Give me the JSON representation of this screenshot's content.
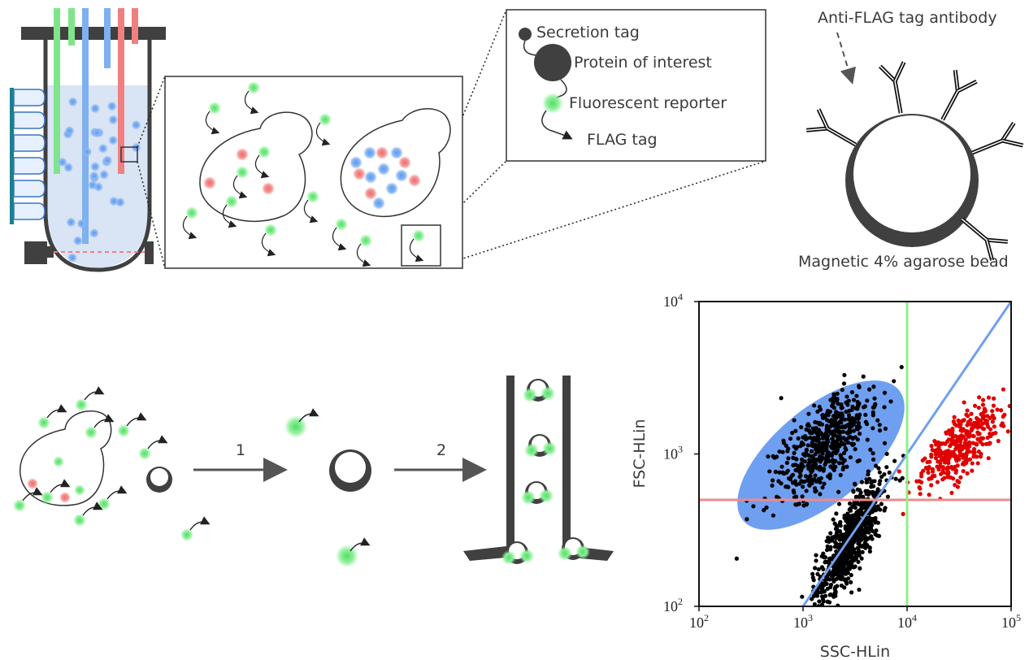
{
  "labels": {
    "secretion_tag": "Secretion tag",
    "protein_of_interest": "Protein of interest",
    "fluorescent_reporter": "Fluorescent reporter",
    "flag_tag": "FLAG tag",
    "anti_flag_antibody": "Anti-FLAG tag antibody",
    "bead": "Magnetic 4% agarose bead",
    "step1": "1",
    "step2": "2"
  },
  "colors": {
    "green": "#7fe58a",
    "blue": "#7fb0f0",
    "red": "#f08080",
    "dark": "#404040",
    "medium_fill": "#d9e4f5",
    "teal": "#1a7f8f",
    "gate_blue": "#6f9ff0",
    "red_line": "#f08a8a",
    "green_line": "#8ff08a",
    "red_points": "#e00000"
  },
  "chart_data": {
    "type": "scatter",
    "xlabel": "SSC-HLin",
    "ylabel": "FSC-HLin",
    "x_scale": "log",
    "y_scale": "log",
    "xlim": [
      100,
      100000
    ],
    "ylim": [
      100,
      10000
    ],
    "x_ticks": [
      {
        "base": "10",
        "exp": "2"
      },
      {
        "base": "10",
        "exp": "3"
      },
      {
        "base": "10",
        "exp": "4"
      },
      {
        "base": "10",
        "exp": "5"
      }
    ],
    "y_ticks": [
      {
        "base": "10",
        "exp": "2"
      },
      {
        "base": "10",
        "exp": "3"
      },
      {
        "base": "10",
        "exp": "4"
      }
    ],
    "threshold_lines": {
      "horizontal_fsc": 500,
      "vertical_ssc": 10000,
      "diagonal": [
        [
          1000,
          100
        ],
        [
          100000,
          10000
        ]
      ]
    },
    "gate_ellipse": {
      "center_ssc": 1700,
      "center_fsc": 1200
    },
    "populations": [
      {
        "cluster": "gated",
        "color": "black",
        "count": 520,
        "center": [
          1600,
          1150
        ]
      },
      {
        "cluster": "lower",
        "color": "black",
        "count": 700,
        "center": [
          2800,
          270
        ]
      },
      {
        "cluster": "upper-right",
        "color": "red",
        "count": 330,
        "center": [
          32000,
          1100
        ]
      }
    ]
  }
}
